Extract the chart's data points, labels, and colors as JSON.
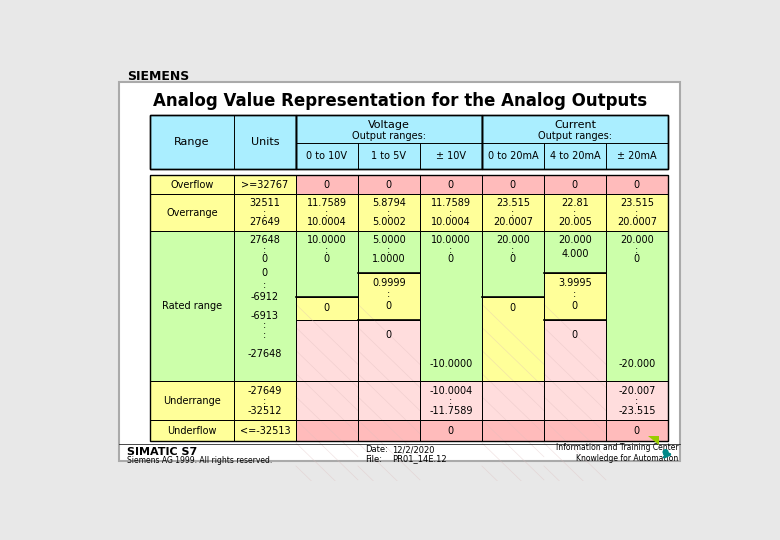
{
  "title": "Analog Value Representation for the Analog Outputs",
  "siemens_logo": "SIEMENS",
  "footer_left": "SIMATIC S7",
  "footer_left2": "Siemens AG 1999. All rights reserved.",
  "footer_date_label": "Date:",
  "footer_date": "12/2/2020",
  "footer_file_label": "File:",
  "footer_file": "PR01_14E.12",
  "footer_right": "Information and Training Center\nKnowledge for Automation",
  "cyan": "#aaeeff",
  "yellow": "#ffff99",
  "light_green": "#ccffaa",
  "pink_dark": "#ffbbbb",
  "pink_light": "#ffdddd",
  "white_bg": "#ffffff",
  "page_bg": "#e8e8e8"
}
